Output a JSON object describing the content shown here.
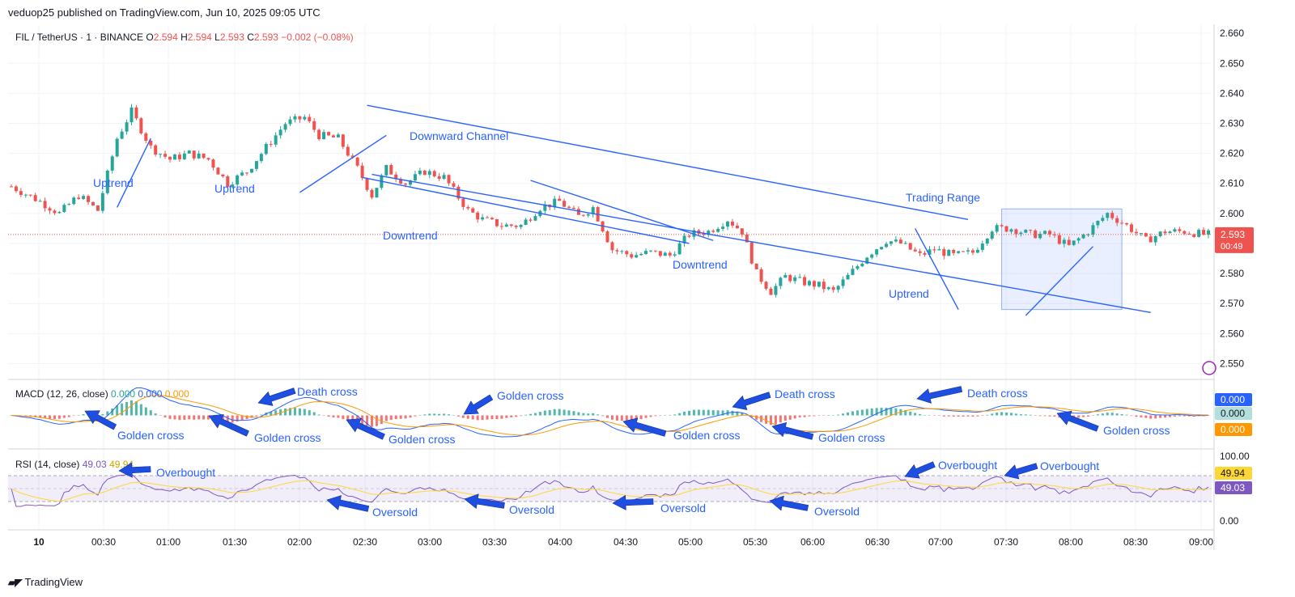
{
  "header": {
    "publisher": "veduop25 published on TradingView.com, Jun 10, 2025 09:05 UTC"
  },
  "footer": {
    "brand": "TradingView"
  },
  "colors": {
    "up": "#26a69a",
    "down": "#ef5350",
    "annotation": "#2962ff",
    "ma_orange": "#ff9800",
    "rsi_line": "#7e57c2",
    "rsi_ma": "#fdd835"
  },
  "chart_data": [
    {
      "type": "candlestick",
      "title": "FIL / TetherUS · 1 · BINANCE",
      "legend": {
        "o_label": "O",
        "o": "2.594",
        "h_label": "H",
        "h": "2.594",
        "l_label": "L",
        "l": "2.593",
        "c_label": "C",
        "c": "2.593",
        "chg": "−0.002 (−0.08%)"
      },
      "y_axis": {
        "ticks": [
          "2.660",
          "2.650",
          "2.640",
          "2.630",
          "2.620",
          "2.610",
          "2.600",
          "2.590",
          "2.580",
          "2.570",
          "2.560",
          "2.550"
        ],
        "ylim": [
          2.545,
          2.663
        ]
      },
      "x_axis": {
        "ticks": [
          "10",
          "00:30",
          "01:00",
          "01:30",
          "02:00",
          "02:30",
          "03:00",
          "03:30",
          "04:00",
          "04:30",
          "05:00",
          "05:30",
          "06:00",
          "06:30",
          "07:00",
          "07:30",
          "08:00",
          "08:30",
          "09:00"
        ]
      },
      "price_label": {
        "value": "2.593",
        "countdown": "00:49"
      },
      "close_path": [
        [
          0,
          2.609
        ],
        [
          6,
          2.604
        ],
        [
          10,
          2.6
        ],
        [
          14,
          2.606
        ],
        [
          18,
          2.601
        ],
        [
          22,
          2.625
        ],
        [
          25,
          2.634
        ],
        [
          29,
          2.622
        ],
        [
          33,
          2.618
        ],
        [
          37,
          2.62
        ],
        [
          41,
          2.618
        ],
        [
          45,
          2.61
        ],
        [
          49,
          2.614
        ],
        [
          53,
          2.622
        ],
        [
          57,
          2.63
        ],
        [
          61,
          2.632
        ],
        [
          64,
          2.626
        ],
        [
          68,
          2.625
        ],
        [
          72,
          2.615
        ],
        [
          75,
          2.606
        ],
        [
          78,
          2.615
        ],
        [
          82,
          2.61
        ],
        [
          86,
          2.614
        ],
        [
          90,
          2.612
        ],
        [
          95,
          2.601
        ],
        [
          98,
          2.598
        ],
        [
          102,
          2.596
        ],
        [
          106,
          2.596
        ],
        [
          110,
          2.602
        ],
        [
          114,
          2.604
        ],
        [
          118,
          2.599
        ],
        [
          121,
          2.602
        ],
        [
          125,
          2.588
        ],
        [
          129,
          2.586
        ],
        [
          133,
          2.587
        ],
        [
          137,
          2.586
        ],
        [
          141,
          2.593
        ],
        [
          145,
          2.594
        ],
        [
          149,
          2.598
        ],
        [
          152,
          2.594
        ],
        [
          155,
          2.58
        ],
        [
          158,
          2.574
        ],
        [
          161,
          2.579
        ],
        [
          165,
          2.577
        ],
        [
          168,
          2.576
        ],
        [
          171,
          2.574
        ],
        [
          174,
          2.579
        ],
        [
          178,
          2.586
        ],
        [
          182,
          2.591
        ],
        [
          185,
          2.59
        ],
        [
          189,
          2.586
        ],
        [
          192,
          2.588
        ],
        [
          196,
          2.586
        ],
        [
          200,
          2.587
        ],
        [
          204,
          2.595
        ],
        [
          208,
          2.595
        ],
        [
          212,
          2.593
        ],
        [
          216,
          2.593
        ],
        [
          220,
          2.589
        ],
        [
          224,
          2.594
        ],
        [
          228,
          2.6
        ],
        [
          232,
          2.596
        ],
        [
          236,
          2.591
        ],
        [
          240,
          2.594
        ],
        [
          244,
          2.594
        ],
        [
          248,
          2.593
        ]
      ],
      "annotations": {
        "uptrend_1": "Uptrend",
        "uptrend_2": "Uptrend",
        "downtrend_1": "Downtrend",
        "downtrend_2": "Downtrend",
        "uptrend_3": "Uptrend",
        "downward_channel": "Downward Channel",
        "trading_range": "Trading Range"
      }
    },
    {
      "type": "line",
      "title": "MACD (12, 26, close)",
      "values_label": {
        "v1": "0.000",
        "v2": "0.000",
        "v3": "0.000"
      },
      "axis_labels": [
        "0.000",
        "0.000",
        "0.000"
      ],
      "annotations": [
        "Golden cross",
        "Golden cross",
        "Golden cross",
        "Golden cross",
        "Golden cross",
        "Golden cross",
        "Golden cross",
        "Death cross",
        "Death cross",
        "Death cross"
      ]
    },
    {
      "type": "line",
      "title": "RSI (14, close)",
      "values_label": {
        "rsi": "49.03",
        "ma": "49.94"
      },
      "y_axis": {
        "ticks": [
          "100.00",
          "0.00"
        ]
      },
      "axis_labels": [
        "49.94",
        "49.03"
      ],
      "annotations": [
        "Overbought",
        "Overbought",
        "Overbought",
        "Oversold",
        "Oversold",
        "Oversold",
        "Oversold"
      ]
    }
  ]
}
